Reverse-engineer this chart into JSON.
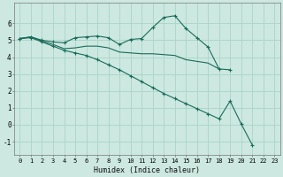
{
  "title": "",
  "xlabel": "Humidex (Indice chaleur)",
  "ylabel": "",
  "background_color": "#cce8e0",
  "grid_color": "#aad4c8",
  "line_color": "#1a6b5a",
  "xlim": [
    -0.5,
    23.5
  ],
  "ylim": [
    -1.8,
    7.2
  ],
  "yticks": [
    -1,
    0,
    1,
    2,
    3,
    4,
    5,
    6
  ],
  "xticks": [
    0,
    1,
    2,
    3,
    4,
    5,
    6,
    7,
    8,
    9,
    10,
    11,
    12,
    13,
    14,
    15,
    16,
    17,
    18,
    19,
    20,
    21,
    22,
    23
  ],
  "curve1_x": [
    0,
    1,
    2,
    3,
    4,
    5,
    6,
    7,
    8,
    9,
    10,
    11,
    12,
    13,
    14,
    15,
    16,
    17,
    18,
    19
  ],
  "curve1_y": [
    5.1,
    5.2,
    5.0,
    4.9,
    4.85,
    5.15,
    5.2,
    5.25,
    5.15,
    4.75,
    5.05,
    5.1,
    5.75,
    6.35,
    6.45,
    5.7,
    5.15,
    4.6,
    3.3,
    3.25
  ],
  "curve2_x": [
    0,
    1,
    2,
    3,
    4,
    5,
    6,
    7,
    8,
    9,
    10,
    11,
    12,
    13,
    14,
    15,
    16,
    17,
    18
  ],
  "curve2_y": [
    5.1,
    5.2,
    4.95,
    4.75,
    4.5,
    4.55,
    4.65,
    4.65,
    4.55,
    4.3,
    4.25,
    4.2,
    4.2,
    4.15,
    4.1,
    3.85,
    3.75,
    3.65,
    3.3
  ],
  "curve3_x": [
    0,
    1,
    2,
    3,
    4,
    5,
    6,
    7,
    8,
    9,
    10,
    11,
    12,
    13,
    14,
    15,
    16,
    17,
    18,
    19,
    20,
    21
  ],
  "curve3_y": [
    5.1,
    5.15,
    4.9,
    4.65,
    4.4,
    4.25,
    4.1,
    3.85,
    3.55,
    3.25,
    2.9,
    2.55,
    2.2,
    1.85,
    1.55,
    1.25,
    0.95,
    0.65,
    0.35,
    1.4,
    0.05,
    -1.2
  ]
}
